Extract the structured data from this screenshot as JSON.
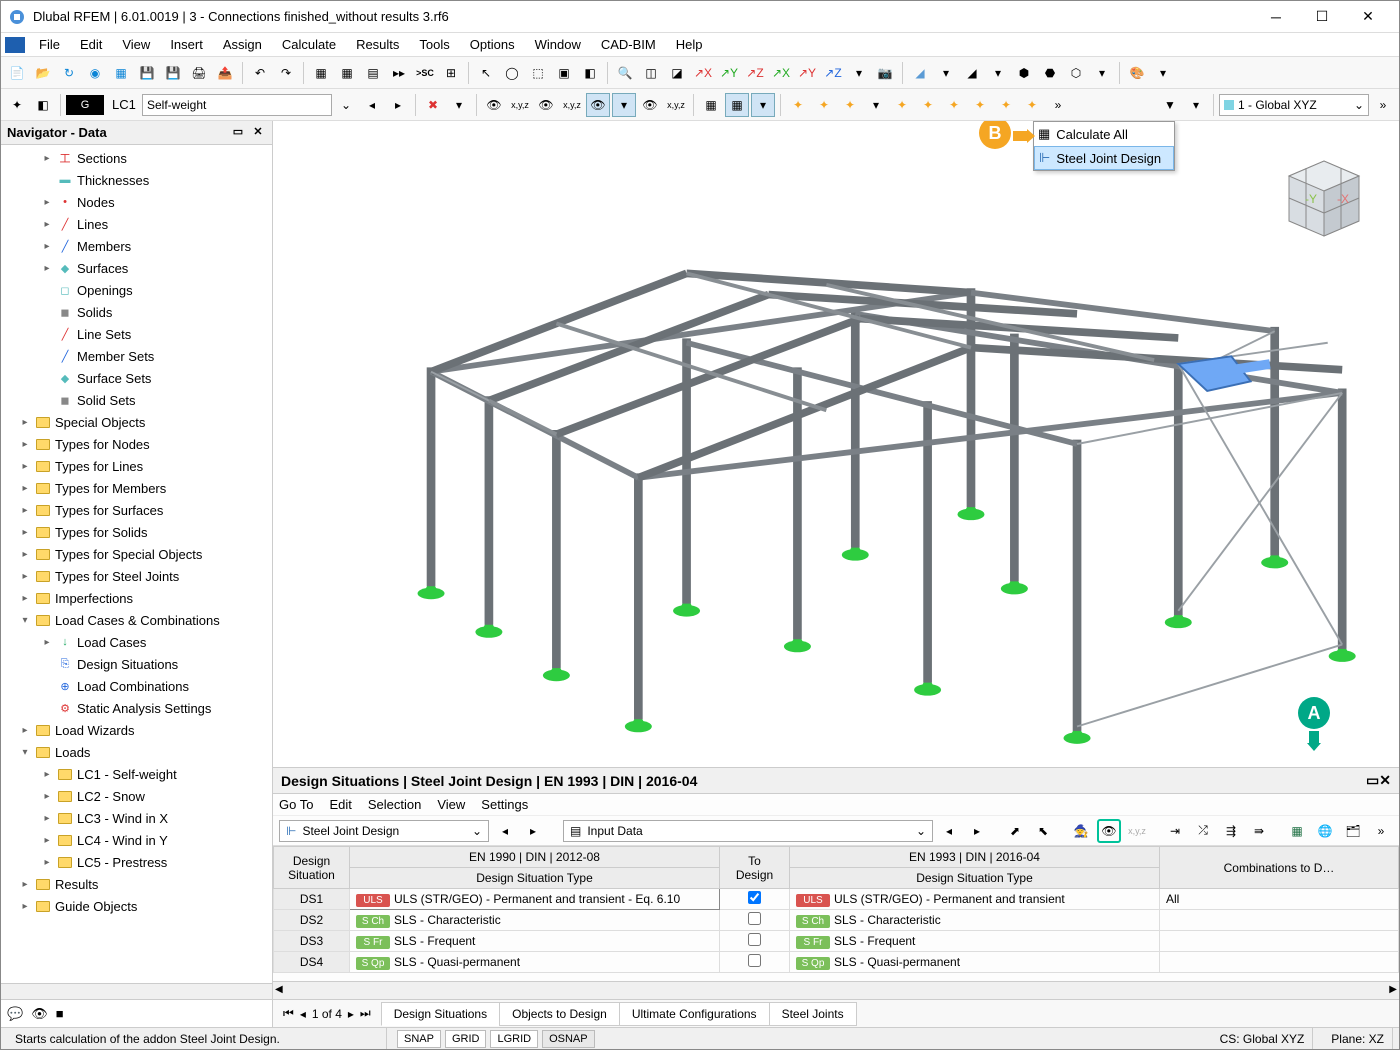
{
  "window": {
    "title": "Dlubal RFEM | 6.01.0019 | 3 - Connections finished_without results 3.rf6"
  },
  "menubar": [
    "File",
    "Edit",
    "View",
    "Insert",
    "Assign",
    "Calculate",
    "Results",
    "Tools",
    "Options",
    "Window",
    "CAD-BIM",
    "Help"
  ],
  "toolbar2": {
    "loadcase_code": "G",
    "loadcase_num": "LC1",
    "loadcase_name": "Self-weight",
    "coord_sys": "1 - Global XYZ"
  },
  "dropdown": {
    "item1": "Calculate All",
    "item2": "Steel Joint Design"
  },
  "bubbles": {
    "a": "A",
    "b": "B"
  },
  "navigator": {
    "title": "Navigator - Data",
    "items": [
      {
        "level": 1,
        "exp": ">",
        "icon": "sect",
        "label": "Sections"
      },
      {
        "level": 1,
        "exp": "",
        "icon": "thick",
        "label": "Thicknesses"
      },
      {
        "level": 1,
        "exp": ">",
        "icon": "node",
        "label": "Nodes"
      },
      {
        "level": 1,
        "exp": ">",
        "icon": "line",
        "label": "Lines"
      },
      {
        "level": 1,
        "exp": ">",
        "icon": "memb",
        "label": "Members"
      },
      {
        "level": 1,
        "exp": ">",
        "icon": "surf",
        "label": "Surfaces"
      },
      {
        "level": 1,
        "exp": "",
        "icon": "open",
        "label": "Openings"
      },
      {
        "level": 1,
        "exp": "",
        "icon": "solid",
        "label": "Solids"
      },
      {
        "level": 1,
        "exp": "",
        "icon": "lset",
        "label": "Line Sets"
      },
      {
        "level": 1,
        "exp": "",
        "icon": "mset",
        "label": "Member Sets"
      },
      {
        "level": 1,
        "exp": "",
        "icon": "sset",
        "label": "Surface Sets"
      },
      {
        "level": 1,
        "exp": "",
        "icon": "soset",
        "label": "Solid Sets"
      },
      {
        "level": 0,
        "exp": ">",
        "icon": "folder",
        "label": "Special Objects"
      },
      {
        "level": 0,
        "exp": ">",
        "icon": "folder",
        "label": "Types for Nodes"
      },
      {
        "level": 0,
        "exp": ">",
        "icon": "folder",
        "label": "Types for Lines"
      },
      {
        "level": 0,
        "exp": ">",
        "icon": "folder",
        "label": "Types for Members"
      },
      {
        "level": 0,
        "exp": ">",
        "icon": "folder",
        "label": "Types for Surfaces"
      },
      {
        "level": 0,
        "exp": ">",
        "icon": "folder",
        "label": "Types for Solids"
      },
      {
        "level": 0,
        "exp": ">",
        "icon": "folder",
        "label": "Types for Special Objects"
      },
      {
        "level": 0,
        "exp": ">",
        "icon": "folder",
        "label": "Types for Steel Joints"
      },
      {
        "level": 0,
        "exp": ">",
        "icon": "folder",
        "label": "Imperfections"
      },
      {
        "level": 0,
        "exp": "v",
        "icon": "folder",
        "label": "Load Cases & Combinations"
      },
      {
        "level": 1,
        "exp": ">",
        "icon": "lc",
        "label": "Load Cases"
      },
      {
        "level": 1,
        "exp": "",
        "icon": "ds",
        "label": "Design Situations"
      },
      {
        "level": 1,
        "exp": "",
        "icon": "lco",
        "label": "Load Combinations"
      },
      {
        "level": 1,
        "exp": "",
        "icon": "sas",
        "label": "Static Analysis Settings"
      },
      {
        "level": 0,
        "exp": ">",
        "icon": "folder",
        "label": "Load Wizards"
      },
      {
        "level": 0,
        "exp": "v",
        "icon": "folder",
        "label": "Loads"
      },
      {
        "level": 1,
        "exp": ">",
        "icon": "folder",
        "label": "LC1 - Self-weight"
      },
      {
        "level": 1,
        "exp": ">",
        "icon": "folder",
        "label": "LC2 - Snow"
      },
      {
        "level": 1,
        "exp": ">",
        "icon": "folder",
        "label": "LC3 - Wind in X"
      },
      {
        "level": 1,
        "exp": ">",
        "icon": "folder",
        "label": "LC4 - Wind in Y"
      },
      {
        "level": 1,
        "exp": ">",
        "icon": "folder",
        "label": "LC5 - Prestress"
      },
      {
        "level": 0,
        "exp": ">",
        "icon": "folder",
        "label": "Results"
      },
      {
        "level": 0,
        "exp": ">",
        "icon": "folder",
        "label": "Guide Objects"
      }
    ]
  },
  "bottom_panel": {
    "title": "Design Situations | Steel Joint Design | EN 1993 | DIN | 2016-04",
    "menus": [
      "Go To",
      "Edit",
      "Selection",
      "View",
      "Settings"
    ],
    "combo1": "Steel Joint Design",
    "combo2": "Input Data",
    "columns_group1": "EN 1990 | DIN | 2012-08",
    "columns_group2": "EN 1993 | DIN | 2016-04",
    "col_ds": "Design\nSituation",
    "col_dst1": "Design Situation Type",
    "col_todesign": "To\nDesign",
    "col_dst2": "Design Situation Type",
    "col_comb": "Combinations to D…",
    "rows": [
      {
        "id": "DS1",
        "badge": "ULS",
        "bcolor": "#d9534f",
        "t1": "ULS (STR/GEO) - Permanent and transient - Eq. 6.10",
        "chk": true,
        "badge2": "ULS",
        "b2color": "#d9534f",
        "t2": "ULS (STR/GEO) - Permanent and transient",
        "comb": "All"
      },
      {
        "id": "DS2",
        "badge": "S Ch",
        "bcolor": "#7bbf5a",
        "t1": "SLS - Characteristic",
        "chk": false,
        "badge2": "S Ch",
        "b2color": "#7bbf5a",
        "t2": "SLS - Characteristic",
        "comb": ""
      },
      {
        "id": "DS3",
        "badge": "S Fr",
        "bcolor": "#7bbf5a",
        "t1": "SLS - Frequent",
        "chk": false,
        "badge2": "S Fr",
        "b2color": "#7bbf5a",
        "t2": "SLS - Frequent",
        "comb": ""
      },
      {
        "id": "DS4",
        "badge": "S Qp",
        "bcolor": "#7bbf5a",
        "t1": "SLS - Quasi-permanent",
        "chk": false,
        "badge2": "S Qp",
        "b2color": "#7bbf5a",
        "t2": "SLS - Quasi-permanent",
        "comb": ""
      }
    ],
    "pager": "1 of 4",
    "tabs": [
      "Design Situations",
      "Objects to Design",
      "Ultimate Configurations",
      "Steel Joints"
    ]
  },
  "statusbar": {
    "hint": "Starts calculation of the addon Steel Joint Design.",
    "snap": "SNAP",
    "grid": "GRID",
    "lgrid": "LGRID",
    "osnap": "OSNAP",
    "cs": "CS: Global XYZ",
    "plane": "Plane: XZ"
  },
  "colors": {
    "steel": "#6b7176",
    "steel_light": "#8a9095",
    "support": "#2ecc40",
    "highlight": "#6fa8f5",
    "bg": "#ffffff"
  }
}
